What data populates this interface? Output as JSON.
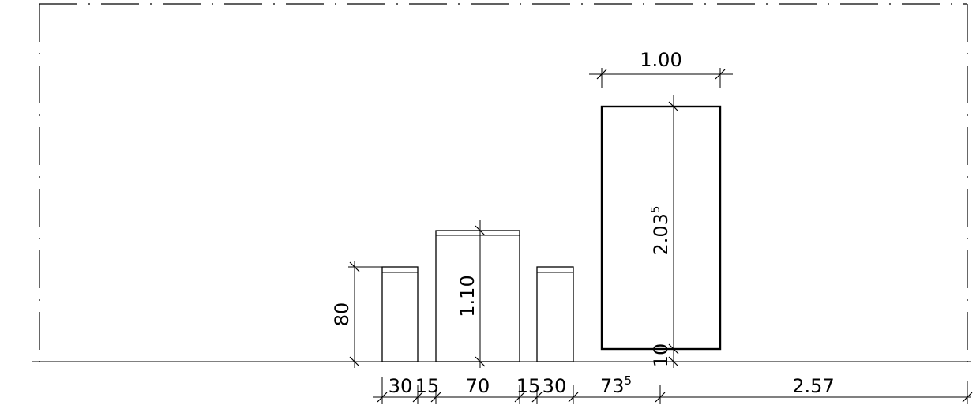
{
  "dimensions": {
    "bottom_chain": [
      {
        "value": "30",
        "sup": ""
      },
      {
        "value": "15",
        "sup": ""
      },
      {
        "value": "70",
        "sup": ""
      },
      {
        "value": "15",
        "sup": ""
      },
      {
        "value": "30",
        "sup": ""
      },
      {
        "value": "73",
        "sup": "5"
      },
      {
        "value": "2.57",
        "sup": ""
      }
    ],
    "stool_height": "80",
    "table_height": "1.10",
    "door_width": "1.00",
    "door_height": {
      "value": "2.03",
      "sup": "5"
    },
    "door_gap": "10"
  }
}
